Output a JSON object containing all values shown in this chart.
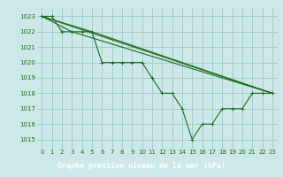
{
  "background_color": "#cde8e8",
  "line_color": "#1a6b1a",
  "grid_color": "#a0c8c8",
  "xlabel": "Graphe pression niveau de la mer (hPa)",
  "ylim": [
    1014.4,
    1023.6
  ],
  "xlim": [
    -0.5,
    23.5
  ],
  "yticks": [
    1015,
    1016,
    1017,
    1018,
    1019,
    1020,
    1021,
    1022,
    1023
  ],
  "xticks": [
    0,
    1,
    2,
    3,
    4,
    5,
    6,
    7,
    8,
    9,
    10,
    11,
    12,
    13,
    14,
    15,
    16,
    17,
    18,
    19,
    20,
    21,
    22,
    23
  ],
  "series": [
    {
      "x": [
        0,
        1,
        2,
        3,
        4,
        5,
        6,
        7,
        8,
        9,
        10,
        11,
        12,
        13,
        14,
        15,
        16,
        17,
        18,
        19,
        20,
        21,
        22,
        23
      ],
      "y": [
        1023,
        1023,
        1022,
        1022,
        1022,
        1022,
        1020,
        1020,
        1020,
        1020,
        1020,
        1019,
        1018,
        1018,
        1017,
        1015,
        1016,
        1016,
        1017,
        1017,
        1017,
        1018,
        1018,
        1018
      ],
      "markers": true
    },
    {
      "x": [
        0,
        23
      ],
      "y": [
        1023,
        1018
      ],
      "markers": false
    },
    {
      "x": [
        0,
        3,
        23
      ],
      "y": [
        1023,
        1022,
        1018
      ],
      "markers": false
    },
    {
      "x": [
        0,
        5,
        23
      ],
      "y": [
        1023,
        1022,
        1018
      ],
      "markers": false
    }
  ],
  "xlabel_bg": "#2a7a2a",
  "tick_fontsize": 5.0,
  "label_fontsize": 6.0
}
